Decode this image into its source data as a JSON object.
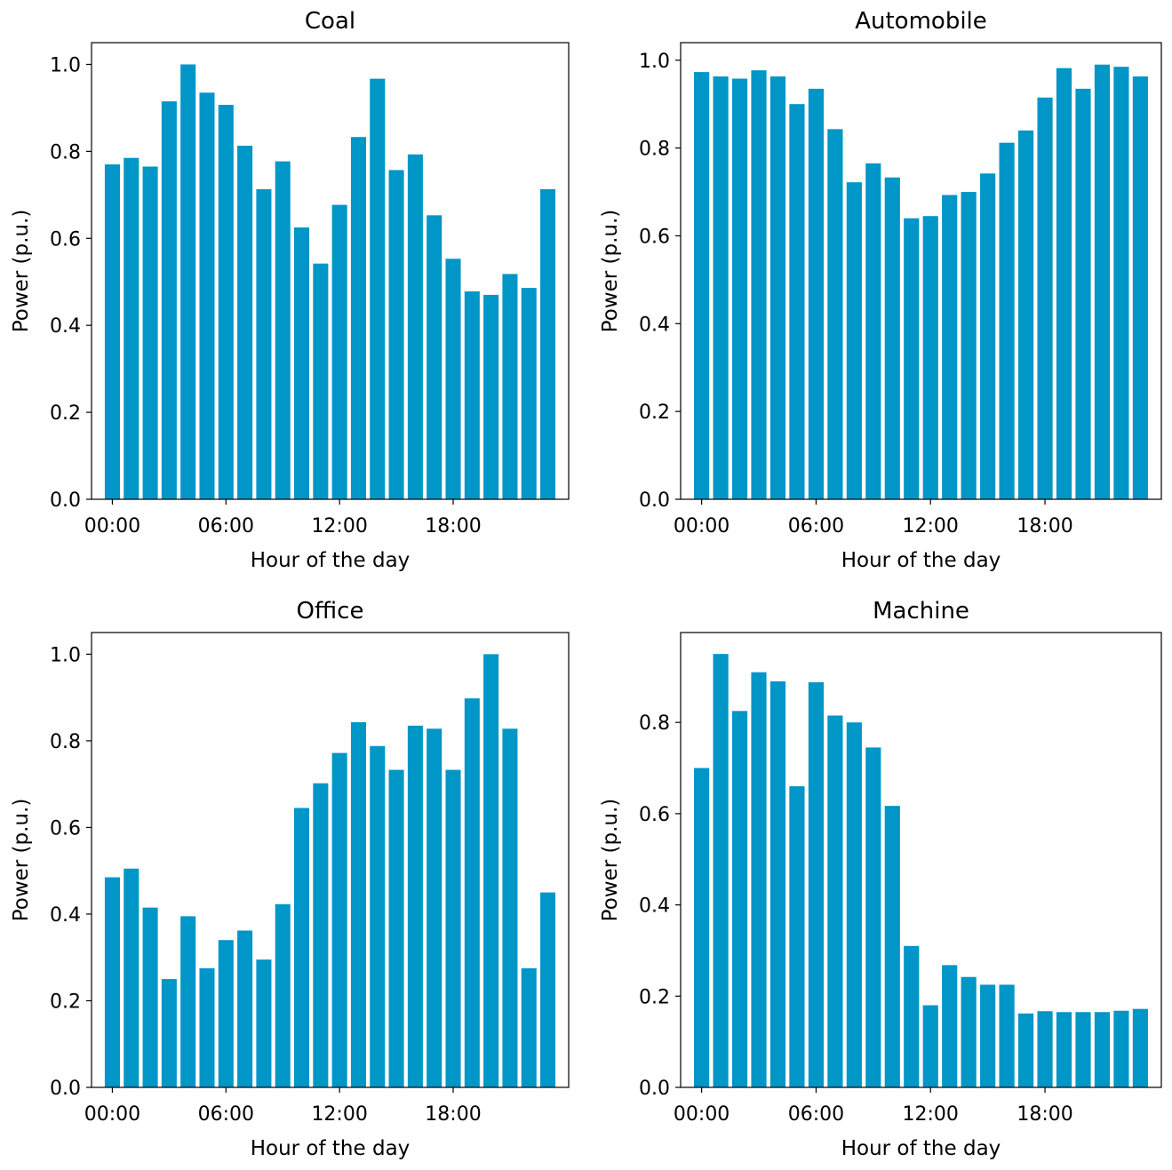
{
  "colors": {
    "bar": "#0096c7",
    "axes": "#000000",
    "background": "#ffffff"
  },
  "chart_data": [
    {
      "type": "bar",
      "title": "Coal",
      "xlabel": "Hour of the day",
      "ylabel": "Power (p.u.)",
      "categories": [
        0,
        1,
        2,
        3,
        4,
        5,
        6,
        7,
        8,
        9,
        10,
        11,
        12,
        13,
        14,
        15,
        16,
        17,
        18,
        19,
        20,
        21,
        22,
        23
      ],
      "values": [
        0.77,
        0.785,
        0.765,
        0.915,
        1.0,
        0.935,
        0.907,
        0.813,
        0.713,
        0.777,
        0.625,
        0.542,
        0.677,
        0.833,
        0.967,
        0.757,
        0.793,
        0.653,
        0.553,
        0.478,
        0.47,
        0.518,
        0.486,
        0.713
      ],
      "xticks": [
        0,
        6,
        12,
        18
      ],
      "xtick_labels": [
        "00:00",
        "06:00",
        "12:00",
        "18:00"
      ],
      "yticks": [
        0.0,
        0.2,
        0.4,
        0.6,
        0.8,
        1.0
      ],
      "ytick_labels": [
        "0.0",
        "0.2",
        "0.4",
        "0.6",
        "0.8",
        "1.0"
      ],
      "ylim": [
        0,
        1.05
      ],
      "grid": false
    },
    {
      "type": "bar",
      "title": "Automobile",
      "xlabel": "Hour of the day",
      "ylabel": "Power (p.u.)",
      "categories": [
        0,
        1,
        2,
        3,
        4,
        5,
        6,
        7,
        8,
        9,
        10,
        11,
        12,
        13,
        14,
        15,
        16,
        17,
        18,
        19,
        20,
        21,
        22,
        23
      ],
      "values": [
        0.973,
        0.963,
        0.958,
        0.977,
        0.963,
        0.9,
        0.935,
        0.843,
        0.722,
        0.765,
        0.733,
        0.64,
        0.645,
        0.693,
        0.7,
        0.742,
        0.812,
        0.84,
        0.915,
        0.982,
        0.935,
        0.99,
        0.985,
        0.963
      ],
      "xticks": [
        0,
        6,
        12,
        18
      ],
      "xtick_labels": [
        "00:00",
        "06:00",
        "12:00",
        "18:00"
      ],
      "yticks": [
        0.0,
        0.2,
        0.4,
        0.6,
        0.8,
        1.0
      ],
      "ytick_labels": [
        "0.0",
        "0.2",
        "0.4",
        "0.6",
        "0.8",
        "1.0"
      ],
      "ylim": [
        0,
        1.04
      ],
      "grid": false
    },
    {
      "type": "bar",
      "title": "Office",
      "xlabel": "Hour of the day",
      "ylabel": "Power (p.u.)",
      "categories": [
        0,
        1,
        2,
        3,
        4,
        5,
        6,
        7,
        8,
        9,
        10,
        11,
        12,
        13,
        14,
        15,
        16,
        17,
        18,
        19,
        20,
        21,
        22,
        23
      ],
      "values": [
        0.485,
        0.505,
        0.415,
        0.25,
        0.395,
        0.275,
        0.34,
        0.362,
        0.295,
        0.423,
        0.645,
        0.702,
        0.772,
        0.843,
        0.788,
        0.733,
        0.835,
        0.828,
        0.733,
        0.898,
        1.0,
        0.828,
        0.275,
        0.45
      ],
      "xticks": [
        0,
        6,
        12,
        18
      ],
      "xtick_labels": [
        "00:00",
        "06:00",
        "12:00",
        "18:00"
      ],
      "yticks": [
        0.0,
        0.2,
        0.4,
        0.6,
        0.8,
        1.0
      ],
      "ytick_labels": [
        "0.0",
        "0.2",
        "0.4",
        "0.6",
        "0.8",
        "1.0"
      ],
      "ylim": [
        0,
        1.05
      ],
      "grid": false
    },
    {
      "type": "bar",
      "title": "Machine",
      "xlabel": "Hour of the day",
      "ylabel": "Power (p.u.)",
      "categories": [
        0,
        1,
        2,
        3,
        4,
        5,
        6,
        7,
        8,
        9,
        10,
        11,
        12,
        13,
        14,
        15,
        16,
        17,
        18,
        19,
        20,
        21,
        22,
        23
      ],
      "values": [
        0.7,
        0.95,
        0.825,
        0.91,
        0.89,
        0.66,
        0.888,
        0.815,
        0.8,
        0.745,
        0.617,
        0.31,
        0.18,
        0.268,
        0.242,
        0.225,
        0.225,
        0.162,
        0.167,
        0.165,
        0.165,
        0.165,
        0.168,
        0.172
      ],
      "xticks": [
        0,
        6,
        12,
        18
      ],
      "xtick_labels": [
        "00:00",
        "06:00",
        "12:00",
        "18:00"
      ],
      "yticks": [
        0.0,
        0.2,
        0.4,
        0.6,
        0.8
      ],
      "ytick_labels": [
        "0.0",
        "0.2",
        "0.4",
        "0.6",
        "0.8"
      ],
      "ylim": [
        0,
        0.997
      ],
      "grid": false
    }
  ]
}
